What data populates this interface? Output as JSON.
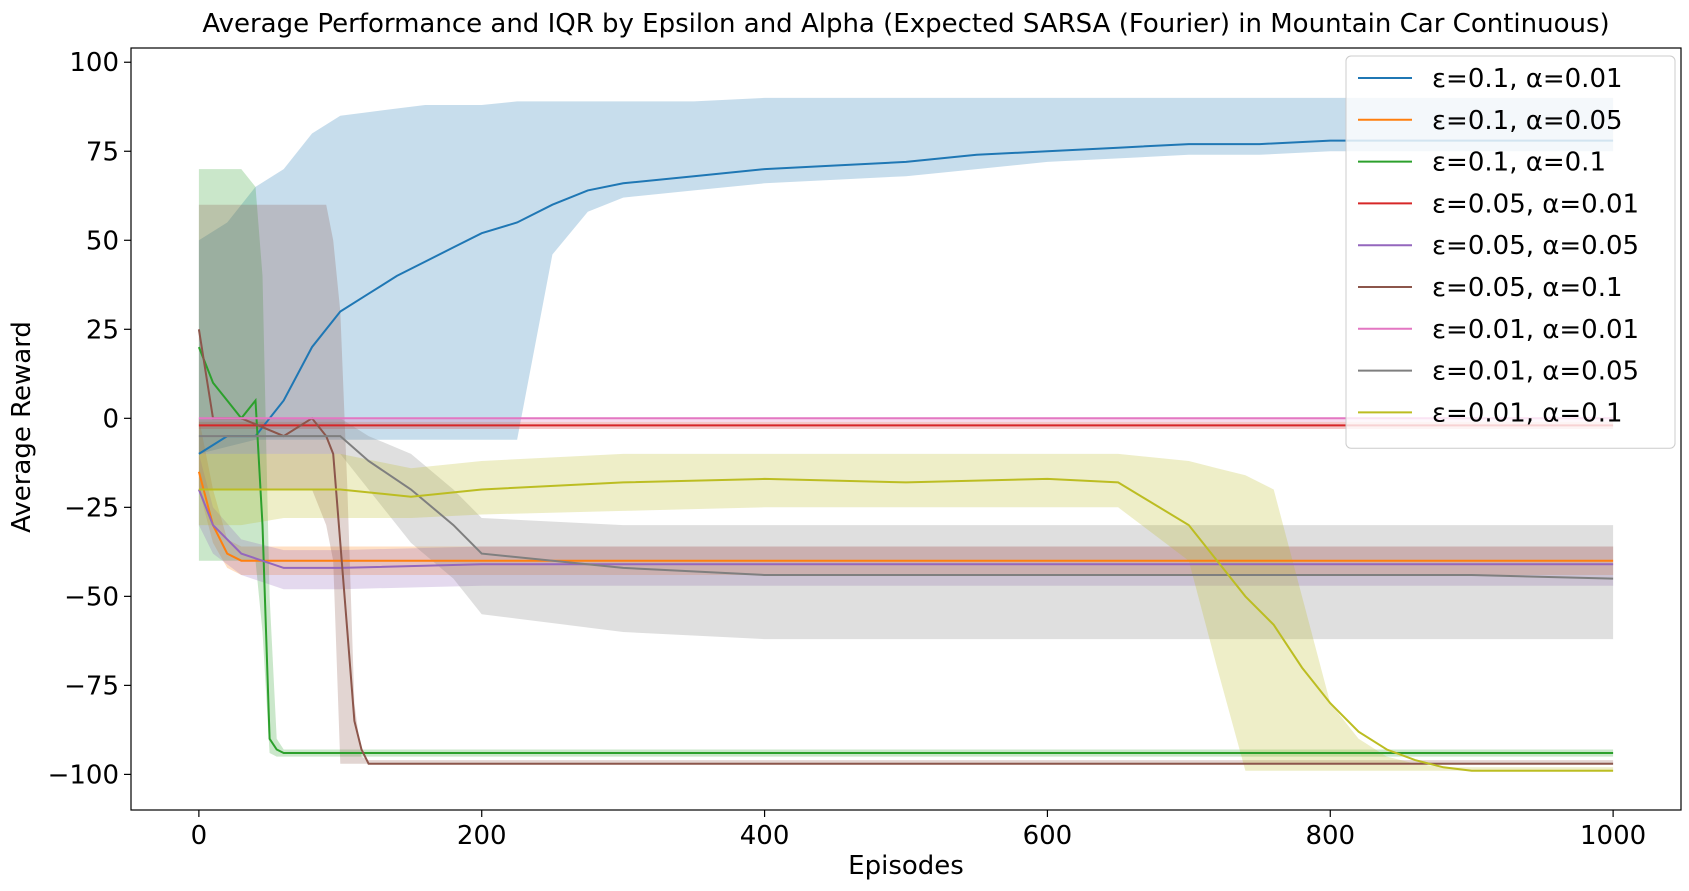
{
  "chart_data": {
    "type": "line",
    "title": "Average Performance and IQR by Epsilon and Alpha (Expected SARSA (Fourier) in Mountain Car Continuous)",
    "xlabel": "Episodes",
    "ylabel": "Average Reward",
    "xlim": [
      -48,
      1048
    ],
    "ylim": [
      -110,
      104
    ],
    "x_ticks": [
      0,
      200,
      400,
      600,
      800,
      1000
    ],
    "y_ticks": [
      100,
      75,
      50,
      25,
      0,
      -25,
      -50,
      -75,
      -100
    ],
    "x_tick_labels": [
      "0",
      "200",
      "400",
      "600",
      "800",
      "1000"
    ],
    "y_tick_labels": [
      "100",
      "75",
      "50",
      "25",
      "0",
      "−25",
      "−50",
      "−75",
      "−100"
    ],
    "grid": false,
    "legend_position": "top-right",
    "series": [
      {
        "name": "ε=0.1, α=0.01",
        "color": "#1f77b4",
        "x": [
          0,
          20,
          40,
          60,
          80,
          100,
          120,
          140,
          160,
          180,
          200,
          225,
          250,
          275,
          300,
          350,
          400,
          450,
          500,
          550,
          600,
          650,
          700,
          750,
          800,
          850,
          900,
          950,
          1000
        ],
        "y": [
          -10,
          -5,
          -5,
          5,
          20,
          30,
          35,
          40,
          44,
          48,
          52,
          55,
          60,
          64,
          66,
          68,
          70,
          71,
          72,
          74,
          75,
          76,
          77,
          77,
          78,
          78,
          78,
          78,
          78
        ],
        "iqr_low": [
          -10,
          -8,
          -6,
          -6,
          -6,
          -6,
          -6,
          -6,
          -6,
          -6,
          -6,
          -6,
          46,
          58,
          62,
          64,
          66,
          67,
          68,
          70,
          72,
          73,
          74,
          74,
          75,
          75,
          75,
          75,
          75
        ],
        "iqr_high": [
          50,
          55,
          65,
          70,
          80,
          85,
          86,
          87,
          88,
          88,
          88,
          89,
          89,
          89,
          89,
          89,
          90,
          90,
          90,
          90,
          90,
          90,
          90,
          90,
          90,
          90,
          90,
          90,
          90
        ]
      },
      {
        "name": "ε=0.1, α=0.05",
        "color": "#ff7f0e",
        "x": [
          0,
          10,
          20,
          30,
          50,
          100,
          200,
          300,
          400,
          500,
          600,
          700,
          800,
          900,
          1000
        ],
        "y": [
          -15,
          -30,
          -38,
          -40,
          -40,
          -40,
          -40,
          -40,
          -40,
          -40,
          -40,
          -40,
          -40,
          -40,
          -40
        ],
        "iqr_low": [
          -20,
          -35,
          -42,
          -44,
          -44,
          -44,
          -44,
          -44,
          -44,
          -44,
          -44,
          -44,
          -44,
          -44,
          -44
        ],
        "iqr_high": [
          0,
          -20,
          -34,
          -36,
          -36,
          -36,
          -36,
          -36,
          -36,
          -36,
          -36,
          -36,
          -36,
          -36,
          -36
        ]
      },
      {
        "name": "ε=0.1, α=0.1",
        "color": "#2ca02c",
        "x": [
          0,
          5,
          10,
          20,
          30,
          40,
          45,
          50,
          55,
          60,
          100,
          200,
          400,
          600,
          800,
          1000
        ],
        "y": [
          20,
          15,
          10,
          5,
          0,
          5,
          -30,
          -90,
          -93,
          -94,
          -94,
          -94,
          -94,
          -94,
          -94,
          -94
        ],
        "iqr_low": [
          -40,
          -40,
          -40,
          -40,
          -40,
          -40,
          -60,
          -94,
          -95,
          -95,
          -95,
          -95,
          -95,
          -95,
          -95,
          -95
        ],
        "iqr_high": [
          70,
          70,
          70,
          70,
          70,
          65,
          40,
          -50,
          -90,
          -93,
          -93,
          -93,
          -93,
          -93,
          -93,
          -93
        ]
      },
      {
        "name": "ε=0.05, α=0.01",
        "color": "#d62728",
        "x": [
          0,
          10,
          50,
          100,
          200,
          400,
          600,
          800,
          1000
        ],
        "y": [
          -2,
          -2,
          -2,
          -2,
          -2,
          -2,
          -2,
          -2,
          -2
        ],
        "iqr_low": [
          -3,
          -3,
          -3,
          -3,
          -3,
          -3,
          -3,
          -3,
          -3
        ],
        "iqr_high": [
          -1,
          -1,
          -1,
          -1,
          -1,
          -1,
          -1,
          -1,
          -1
        ]
      },
      {
        "name": "ε=0.05, α=0.05",
        "color": "#9467bd",
        "x": [
          0,
          10,
          30,
          60,
          100,
          200,
          300,
          400,
          500,
          600,
          700,
          800,
          900,
          1000
        ],
        "y": [
          -20,
          -30,
          -38,
          -42,
          -42,
          -41,
          -41,
          -41,
          -41,
          -41,
          -41,
          -41,
          -41,
          -41
        ],
        "iqr_low": [
          -30,
          -38,
          -44,
          -48,
          -48,
          -47,
          -47,
          -47,
          -47,
          -47,
          -47,
          -47,
          -47,
          -47
        ],
        "iqr_high": [
          -10,
          -25,
          -34,
          -37,
          -37,
          -36,
          -36,
          -36,
          -36,
          -36,
          -36,
          -36,
          -36,
          -36
        ]
      },
      {
        "name": "ε=0.05, α=0.1",
        "color": "#8c564b",
        "x": [
          0,
          10,
          30,
          60,
          80,
          90,
          95,
          100,
          105,
          110,
          115,
          120,
          200,
          400,
          600,
          800,
          1000
        ],
        "y": [
          25,
          0,
          0,
          -5,
          0,
          -5,
          -10,
          -35,
          -60,
          -85,
          -93,
          -97,
          -97,
          -97,
          -97,
          -97,
          -97
        ],
        "iqr_low": [
          -20,
          -20,
          -20,
          -20,
          -20,
          -30,
          -40,
          -97,
          -97,
          -97,
          -97,
          -97,
          -97,
          -97,
          -97,
          -97,
          -97
        ],
        "iqr_high": [
          60,
          60,
          60,
          60,
          60,
          60,
          50,
          30,
          -20,
          -80,
          -95,
          -96,
          -96,
          -96,
          -96,
          -96,
          -96
        ]
      },
      {
        "name": "ε=0.01, α=0.01",
        "color": "#e377c2",
        "x": [
          0,
          200,
          400,
          600,
          800,
          1000
        ],
        "y": [
          0,
          0,
          0,
          0,
          0,
          0
        ],
        "iqr_low": [
          -1,
          -1,
          -1,
          -1,
          -1,
          -1
        ],
        "iqr_high": [
          0,
          0,
          0,
          0,
          0,
          0
        ]
      },
      {
        "name": "ε=0.01, α=0.05",
        "color": "#7f7f7f",
        "x": [
          0,
          50,
          100,
          120,
          150,
          180,
          200,
          300,
          400,
          500,
          600,
          700,
          800,
          900,
          1000
        ],
        "y": [
          -5,
          -5,
          -5,
          -12,
          -20,
          -30,
          -38,
          -42,
          -44,
          -44,
          -44,
          -44,
          -44,
          -44,
          -45
        ],
        "iqr_low": [
          -10,
          -10,
          -10,
          -20,
          -35,
          -45,
          -55,
          -60,
          -62,
          -62,
          -62,
          -62,
          -62,
          -62,
          -62
        ],
        "iqr_high": [
          0,
          0,
          0,
          -5,
          -10,
          -20,
          -28,
          -30,
          -30,
          -30,
          -30,
          -30,
          -30,
          -30,
          -30
        ]
      },
      {
        "name": "ε=0.01, α=0.1",
        "color": "#bcbd22",
        "x": [
          0,
          30,
          60,
          100,
          150,
          200,
          300,
          400,
          500,
          600,
          650,
          700,
          720,
          740,
          760,
          780,
          800,
          820,
          840,
          860,
          880,
          900,
          1000
        ],
        "y": [
          -20,
          -20,
          -20,
          -20,
          -22,
          -20,
          -18,
          -17,
          -18,
          -17,
          -18,
          -30,
          -40,
          -50,
          -58,
          -70,
          -80,
          -88,
          -93,
          -96,
          -98,
          -99,
          -99
        ],
        "iqr_low": [
          -30,
          -30,
          -28,
          -28,
          -28,
          -27,
          -26,
          -25,
          -25,
          -25,
          -25,
          -40,
          -70,
          -99,
          -99,
          -99,
          -99,
          -99,
          -99,
          -99,
          -99,
          -99,
          -99
        ],
        "iqr_high": [
          -10,
          -10,
          -10,
          -10,
          -14,
          -12,
          -10,
          -10,
          -10,
          -10,
          -10,
          -12,
          -14,
          -16,
          -20,
          -50,
          -80,
          -90,
          -95,
          -97,
          -98,
          -98,
          -98
        ]
      }
    ]
  }
}
